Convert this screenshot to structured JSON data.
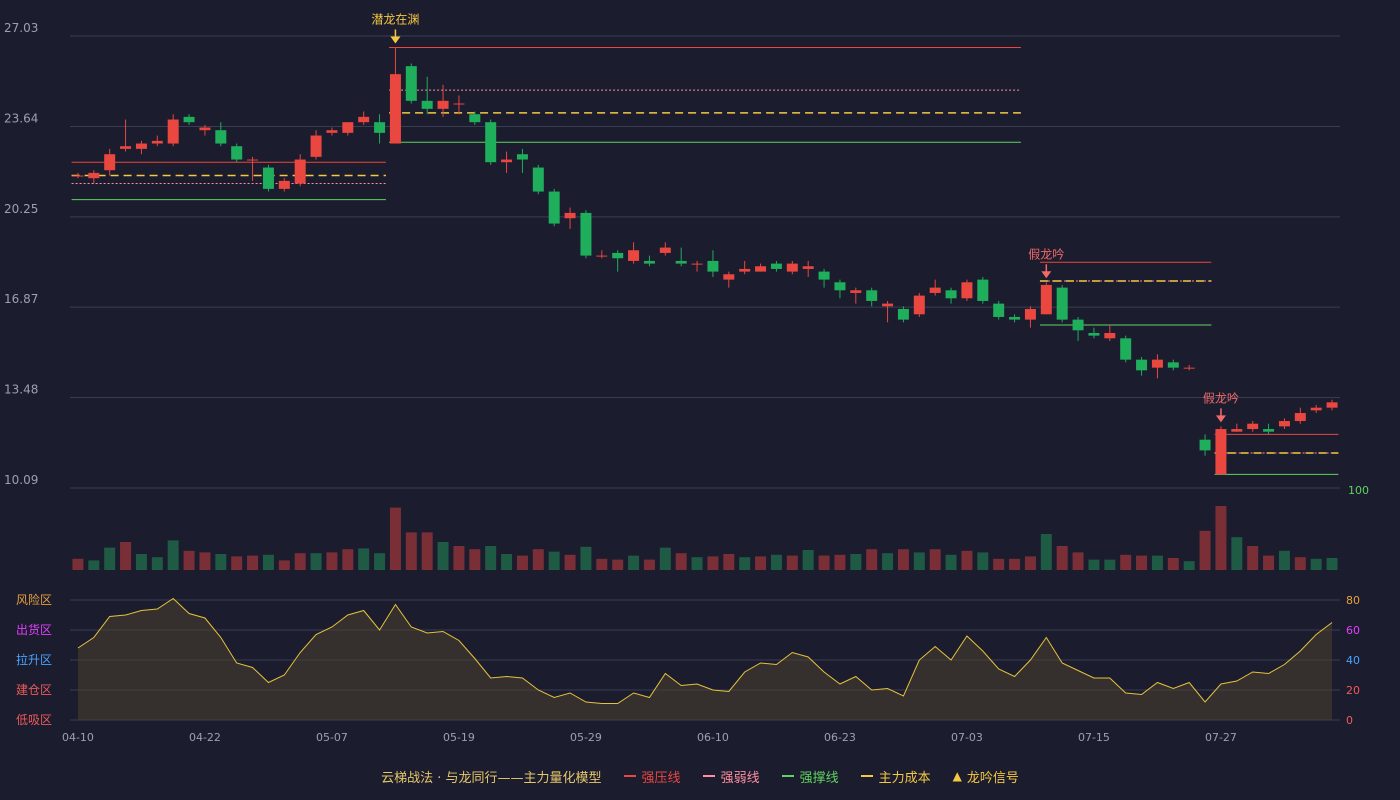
{
  "chart_data": {
    "type": "candlestick",
    "price_axis": {
      "ticks": [
        27.03,
        23.64,
        20.25,
        16.87,
        13.48,
        10.09
      ],
      "range": [
        10.09,
        27.03
      ]
    },
    "volume_axis": {
      "ticks": [
        100
      ]
    },
    "indicator_axis": {
      "ticks": [
        80,
        60,
        40,
        20,
        0
      ],
      "zones": [
        "风险区",
        "出货区",
        "拉升区",
        "建仓区",
        "低吸区"
      ],
      "zone_colors": [
        "#e6a13c",
        "#e040fb",
        "#4aa3ff",
        "#f05a5a",
        "#f05a5a"
      ],
      "range": [
        0,
        100
      ]
    },
    "x_labels": [
      {
        "i": 0,
        "label": "04-10"
      },
      {
        "i": 8,
        "label": "04-22"
      },
      {
        "i": 16,
        "label": "05-07"
      },
      {
        "i": 24,
        "label": "05-19"
      },
      {
        "i": 32,
        "label": "05-29"
      },
      {
        "i": 40,
        "label": "06-10"
      },
      {
        "i": 48,
        "label": "06-23"
      },
      {
        "i": 56,
        "label": "07-03"
      },
      {
        "i": 64,
        "label": "07-15"
      },
      {
        "i": 72,
        "label": "07-27"
      }
    ],
    "candles": [
      [
        21.8,
        21.8,
        21.9,
        21.7
      ],
      [
        21.7,
        21.9,
        22.0,
        21.5
      ],
      [
        22.0,
        22.6,
        22.8,
        21.8
      ],
      [
        22.8,
        22.9,
        23.9,
        22.7
      ],
      [
        22.8,
        23.0,
        23.1,
        22.6
      ],
      [
        23.0,
        23.1,
        23.3,
        22.9
      ],
      [
        23.0,
        23.9,
        24.1,
        22.9
      ],
      [
        24.0,
        23.8,
        24.1,
        23.7
      ],
      [
        23.5,
        23.6,
        23.7,
        23.3
      ],
      [
        23.5,
        23.0,
        23.8,
        22.9
      ],
      [
        22.9,
        22.4,
        23.0,
        22.3
      ],
      [
        22.4,
        22.4,
        22.5,
        21.6
      ],
      [
        22.1,
        21.3,
        22.2,
        21.2
      ],
      [
        21.3,
        21.6,
        21.7,
        21.2
      ],
      [
        21.5,
        22.4,
        22.6,
        21.4
      ],
      [
        22.5,
        23.3,
        23.5,
        22.4
      ],
      [
        23.4,
        23.5,
        23.6,
        23.3
      ],
      [
        23.4,
        23.8,
        23.8,
        23.3
      ],
      [
        23.8,
        24.0,
        24.2,
        23.7
      ],
      [
        23.8,
        23.4,
        24.1,
        23.0
      ],
      [
        23.0,
        25.6,
        26.6,
        23.0
      ],
      [
        25.9,
        24.6,
        26.0,
        24.5
      ],
      [
        24.6,
        24.3,
        25.5,
        24.1
      ],
      [
        24.3,
        24.6,
        25.2,
        24.0
      ],
      [
        24.5,
        24.5,
        24.8,
        24.1
      ],
      [
        24.1,
        23.8,
        24.2,
        23.7
      ],
      [
        23.8,
        22.3,
        23.9,
        22.2
      ],
      [
        22.3,
        22.4,
        22.7,
        21.9
      ],
      [
        22.6,
        22.4,
        22.8,
        21.9
      ],
      [
        22.1,
        21.2,
        22.2,
        21.1
      ],
      [
        21.2,
        20.0,
        21.3,
        19.9
      ],
      [
        20.2,
        20.4,
        20.6,
        19.8
      ],
      [
        20.4,
        18.8,
        20.5,
        18.7
      ],
      [
        18.8,
        18.8,
        19.0,
        18.7
      ],
      [
        18.9,
        18.7,
        19.0,
        18.2
      ],
      [
        18.6,
        19.0,
        19.3,
        18.5
      ],
      [
        18.6,
        18.5,
        18.8,
        18.4
      ],
      [
        18.9,
        19.1,
        19.3,
        18.8
      ],
      [
        18.6,
        18.5,
        19.1,
        18.4
      ],
      [
        18.5,
        18.5,
        18.6,
        18.2
      ],
      [
        18.6,
        18.2,
        19.0,
        18.0
      ],
      [
        17.9,
        18.1,
        18.2,
        17.6
      ],
      [
        18.2,
        18.3,
        18.6,
        18.1
      ],
      [
        18.2,
        18.4,
        18.5,
        18.2
      ],
      [
        18.5,
        18.3,
        18.6,
        18.2
      ],
      [
        18.2,
        18.5,
        18.6,
        18.1
      ],
      [
        18.3,
        18.4,
        18.6,
        18.0
      ],
      [
        18.2,
        17.9,
        18.3,
        17.6
      ],
      [
        17.8,
        17.5,
        17.9,
        17.2
      ],
      [
        17.4,
        17.5,
        17.6,
        17.0
      ],
      [
        17.5,
        17.1,
        17.6,
        16.9
      ],
      [
        16.9,
        17.0,
        17.1,
        16.3
      ],
      [
        16.8,
        16.4,
        16.9,
        16.3
      ],
      [
        16.6,
        17.3,
        17.4,
        16.5
      ],
      [
        17.4,
        17.6,
        17.9,
        17.3
      ],
      [
        17.5,
        17.2,
        17.6,
        17.0
      ],
      [
        17.2,
        17.8,
        17.9,
        17.1
      ],
      [
        17.9,
        17.1,
        18.0,
        17.0
      ],
      [
        17.0,
        16.5,
        17.1,
        16.4
      ],
      [
        16.5,
        16.4,
        16.6,
        16.3
      ],
      [
        16.4,
        16.8,
        16.9,
        16.1
      ],
      [
        16.6,
        17.7,
        17.8,
        16.6
      ],
      [
        17.6,
        16.4,
        17.7,
        16.3
      ],
      [
        16.4,
        16.0,
        16.5,
        15.6
      ],
      [
        15.9,
        15.8,
        16.1,
        15.7
      ],
      [
        15.7,
        15.9,
        16.2,
        15.6
      ],
      [
        15.7,
        14.9,
        15.8,
        14.8
      ],
      [
        14.9,
        14.5,
        15.0,
        14.3
      ],
      [
        14.6,
        14.9,
        15.1,
        14.2
      ],
      [
        14.8,
        14.6,
        14.9,
        14.5
      ],
      [
        14.6,
        14.6,
        14.7,
        14.5
      ],
      [
        11.9,
        11.5,
        12.1,
        11.3
      ],
      [
        10.6,
        12.3,
        12.4,
        10.6
      ],
      [
        12.2,
        12.3,
        12.5,
        12.2
      ],
      [
        12.3,
        12.5,
        12.6,
        12.2
      ],
      [
        12.3,
        12.2,
        12.5,
        12.1
      ],
      [
        12.4,
        12.6,
        12.7,
        12.3
      ],
      [
        12.6,
        12.9,
        13.1,
        12.5
      ],
      [
        13.0,
        13.1,
        13.2,
        12.9
      ],
      [
        13.1,
        13.3,
        13.4,
        13.0
      ]
    ],
    "volumes": [
      14,
      12,
      28,
      35,
      20,
      16,
      37,
      24,
      22,
      20,
      17,
      18,
      19,
      12,
      21,
      21,
      22,
      26,
      27,
      21,
      78,
      47,
      47,
      35,
      30,
      26,
      30,
      20,
      18,
      26,
      23,
      19,
      29,
      14,
      13,
      18,
      13,
      28,
      21,
      16,
      17,
      20,
      16,
      17,
      19,
      18,
      25,
      18,
      19,
      20,
      26,
      21,
      26,
      22,
      26,
      19,
      24,
      22,
      14,
      14,
      17,
      45,
      30,
      22,
      13,
      13,
      19,
      18,
      18,
      15,
      11,
      49,
      80,
      41,
      30,
      18,
      24,
      16,
      14,
      15
    ],
    "volume_up": [
      true,
      false,
      false,
      true,
      false,
      false,
      false,
      true,
      true,
      false,
      true,
      true,
      false,
      true,
      true,
      false,
      true,
      true,
      false,
      false,
      true,
      true,
      true,
      false,
      true,
      true,
      false,
      false,
      true,
      true,
      false,
      true,
      false,
      true,
      true,
      false,
      true,
      false,
      true,
      false,
      true,
      true,
      false,
      true,
      false,
      true,
      false,
      true,
      true,
      false,
      true,
      false,
      true,
      false,
      true,
      false,
      true,
      false,
      true,
      true,
      true,
      false,
      true,
      true,
      false,
      false,
      true,
      true,
      false,
      true,
      false,
      true,
      true,
      false,
      true,
      true,
      false,
      true,
      false,
      false
    ],
    "indicator": [
      48,
      55,
      69,
      70,
      73,
      74,
      81,
      71,
      68,
      55,
      38,
      35,
      25,
      30,
      45,
      57,
      62,
      70,
      73,
      60,
      77,
      62,
      58,
      59,
      53,
      41,
      28,
      29,
      28,
      20,
      15,
      18,
      12,
      11,
      11,
      18,
      15,
      31,
      23,
      24,
      20,
      19,
      32,
      38,
      37,
      45,
      42,
      32,
      24,
      29,
      20,
      21,
      16,
      40,
      49,
      40,
      56,
      46,
      34,
      29,
      40,
      55,
      38,
      33,
      28,
      28,
      18,
      17,
      25,
      21,
      25,
      12,
      24,
      26,
      32,
      31,
      37,
      46,
      57,
      65
    ],
    "overlays": [
      {
        "i0": 0,
        "i1": 19,
        "resist": 22.3,
        "weak": 21.5,
        "cost": 21.8,
        "support": 20.9,
        "signal": ""
      },
      {
        "i0": 20,
        "i1": 59,
        "resist": 26.6,
        "weak": 25.0,
        "cost": 24.15,
        "support": 23.05,
        "signal": "潜龙在渊",
        "si": 20
      },
      {
        "i0": 61,
        "i1": 71,
        "resist": 18.55,
        "weak": 17.85,
        "cost": 17.85,
        "support": 16.2,
        "signal": "假龙吟",
        "si": 61
      },
      {
        "i0": 72,
        "i1": 79,
        "resist": 12.1,
        "weak": 11.4,
        "cost": 11.4,
        "support": 10.6,
        "signal": "假龙吟",
        "si": 72
      }
    ],
    "legend": {
      "title": "云梯战法 · 与龙同行——主力量化模型",
      "items": [
        "强压线",
        "强弱线",
        "强撑线",
        "主力成本",
        "龙吟信号"
      ]
    }
  },
  "colors": {
    "up": "#e9473f",
    "down": "#1fae5c",
    "resist": "#e9473f",
    "weak": "#ff8fa0",
    "support": "#5fd35f",
    "cost": "#f5c842",
    "signal_gold": "#f5c842",
    "signal_red": "#f06a6a",
    "grid": "#3a3c52",
    "axis_text": "#9aa0b4"
  }
}
